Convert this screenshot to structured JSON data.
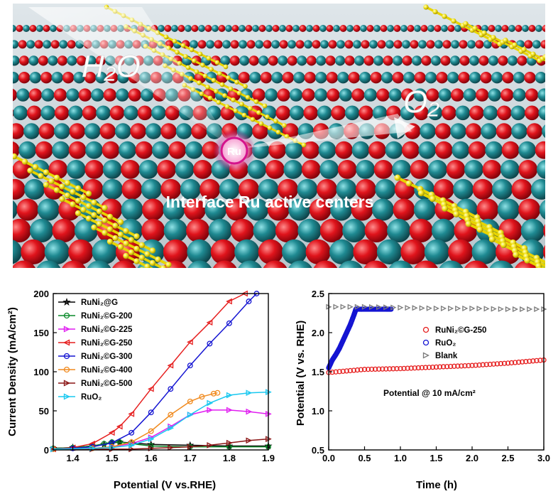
{
  "scene": {
    "label_h2o": "H₂O",
    "label_o2": "O₂",
    "label_ru": "Ru",
    "caption": "Interface Ru active centers",
    "colors": {
      "ru": "#1f7f86",
      "o": "#d8121a",
      "c": "#f2e21a",
      "bg_top": "#e8eef2"
    }
  },
  "chart_data": [
    {
      "type": "line",
      "xlabel": "Potential (V vs.RHE)",
      "ylabel": "Current Density (mA/cm²)",
      "xlim": [
        1.35,
        1.9
      ],
      "ylim": [
        0,
        200
      ],
      "xticks": [
        "1.4",
        "1.5",
        "1.6",
        "1.7",
        "1.8",
        "1.9"
      ],
      "yticks": [
        "0",
        "50",
        "100",
        "150",
        "200"
      ],
      "legend": "top-left",
      "series": [
        {
          "name": "RuNi₂@G",
          "color": "#000000",
          "marker": "star",
          "x": [
            1.35,
            1.4,
            1.45,
            1.48,
            1.5,
            1.52,
            1.55,
            1.6,
            1.7,
            1.8,
            1.9
          ],
          "y": [
            2,
            3,
            5,
            7,
            9,
            10,
            9,
            7,
            6,
            5,
            5
          ]
        },
        {
          "name": "RuNi₂©G-200",
          "color": "#0a8a2a",
          "marker": "circle",
          "x": [
            1.35,
            1.4,
            1.45,
            1.48,
            1.5,
            1.52,
            1.55,
            1.6,
            1.7,
            1.8,
            1.9
          ],
          "y": [
            2,
            3,
            5,
            8,
            10,
            10,
            8,
            5,
            4,
            4,
            4
          ]
        },
        {
          "name": "RuNi₂©G-225",
          "color": "#e01cf0",
          "marker": "tri-right",
          "x": [
            1.35,
            1.45,
            1.5,
            1.55,
            1.6,
            1.65,
            1.7,
            1.75,
            1.8,
            1.85,
            1.9
          ],
          "y": [
            1,
            2,
            4,
            8,
            16,
            30,
            45,
            51,
            51,
            49,
            46
          ]
        },
        {
          "name": "RuNi₂©G-250",
          "color": "#e61e1e",
          "marker": "tri-left",
          "x": [
            1.35,
            1.4,
            1.45,
            1.5,
            1.52,
            1.55,
            1.6,
            1.65,
            1.7,
            1.75,
            1.8,
            1.84
          ],
          "y": [
            1,
            3,
            8,
            22,
            30,
            46,
            78,
            108,
            138,
            163,
            190,
            200
          ]
        },
        {
          "name": "RuNi₂©G-300",
          "color": "#1414d2",
          "marker": "circle",
          "x": [
            1.35,
            1.4,
            1.45,
            1.5,
            1.55,
            1.6,
            1.65,
            1.7,
            1.75,
            1.8,
            1.85,
            1.87
          ],
          "y": [
            1,
            2,
            4,
            9,
            22,
            48,
            78,
            108,
            136,
            162,
            190,
            200
          ]
        },
        {
          "name": "RuNi₂©G-400",
          "color": "#f08a1e",
          "marker": "circle",
          "x": [
            1.35,
            1.45,
            1.5,
            1.55,
            1.6,
            1.65,
            1.7,
            1.73,
            1.76,
            1.77
          ],
          "y": [
            1,
            2,
            4,
            10,
            24,
            45,
            62,
            68,
            72,
            73
          ]
        },
        {
          "name": "RuNi₂©G-500",
          "color": "#8a1414",
          "marker": "tri-right",
          "x": [
            1.35,
            1.45,
            1.5,
            1.55,
            1.6,
            1.65,
            1.7,
            1.75,
            1.8,
            1.85,
            1.9
          ],
          "y": [
            1,
            1,
            1,
            1,
            2,
            3,
            4,
            6,
            9,
            12,
            14
          ]
        },
        {
          "name": "RuO₂",
          "color": "#19c8f0",
          "marker": "tri-right",
          "x": [
            1.35,
            1.45,
            1.5,
            1.55,
            1.6,
            1.65,
            1.7,
            1.75,
            1.8,
            1.85,
            1.9
          ],
          "y": [
            1,
            2,
            3,
            6,
            14,
            28,
            45,
            60,
            70,
            73,
            74
          ]
        }
      ]
    },
    {
      "type": "scatter",
      "xlabel": "Time (h)",
      "ylabel": "Potential (V vs. RHE)",
      "xlim": [
        0,
        3.0
      ],
      "ylim": [
        0.5,
        2.5
      ],
      "xticks": [
        "0.0",
        "0.5",
        "1.0",
        "1.5",
        "2.0",
        "2.5",
        "3.0"
      ],
      "yticks": [
        "0.5",
        "1.0",
        "1.5",
        "2.0",
        "2.5"
      ],
      "annotation": "Potential @ 10 mA/cm²",
      "legend": "right",
      "series": [
        {
          "name": "RuNi₂©G-250",
          "color": "#e61e1e",
          "marker": "circle",
          "x": [
            0,
            0.5,
            1.0,
            1.5,
            2.0,
            2.5,
            3.0
          ],
          "y": [
            1.49,
            1.53,
            1.54,
            1.56,
            1.58,
            1.61,
            1.65
          ]
        },
        {
          "name": "RuO₂",
          "color": "#1414d2",
          "marker": "circle",
          "x": [
            0,
            0.05,
            0.1,
            0.15,
            0.2,
            0.25,
            0.3,
            0.35,
            0.38,
            0.4,
            0.5,
            0.6,
            0.7,
            0.8,
            0.87
          ],
          "y": [
            1.55,
            1.65,
            1.72,
            1.8,
            1.9,
            2.0,
            2.1,
            2.22,
            2.3,
            2.3,
            2.3,
            2.3,
            2.3,
            2.3,
            2.3
          ]
        },
        {
          "name": "Blank",
          "color": "#7a7a7a",
          "marker": "tri-right",
          "x": [
            0,
            0.5,
            1.0,
            1.5,
            2.0,
            2.5,
            3.0
          ],
          "y": [
            2.33,
            2.33,
            2.32,
            2.31,
            2.31,
            2.3,
            2.3
          ]
        }
      ]
    }
  ]
}
